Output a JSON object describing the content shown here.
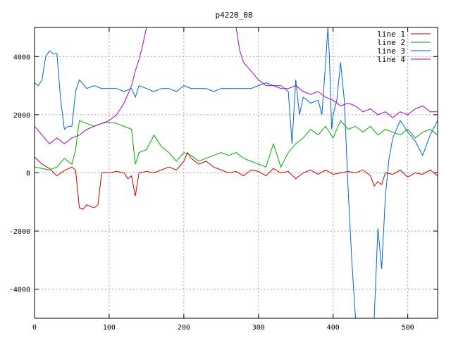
{
  "chart_data": {
    "type": "line",
    "title": "p4220_08",
    "xlabel": "",
    "ylabel": "",
    "xlim": [
      0,
      540
    ],
    "ylim": [
      -5000,
      5000
    ],
    "xticks": [
      0,
      100,
      200,
      300,
      400,
      500
    ],
    "yticks": [
      -4000,
      -2000,
      0,
      2000,
      4000
    ],
    "grid": true,
    "legend": "top-right",
    "series": [
      {
        "name": "line 1",
        "color": "#cc0000",
        "x": [
          0,
          10,
          20,
          30,
          40,
          50,
          55,
          60,
          65,
          70,
          80,
          85,
          90,
          100,
          110,
          120,
          125,
          130,
          135,
          140,
          150,
          160,
          170,
          180,
          190,
          200,
          205,
          210,
          220,
          230,
          240,
          250,
          260,
          270,
          280,
          290,
          300,
          310,
          320,
          330,
          340,
          350,
          360,
          370,
          380,
          390,
          400,
          410,
          420,
          430,
          440,
          450,
          455,
          460,
          465,
          470,
          480,
          490,
          500,
          510,
          520,
          530,
          540
        ],
        "y": [
          550,
          300,
          150,
          -100,
          80,
          200,
          100,
          -1200,
          -1250,
          -1100,
          -1200,
          -1100,
          0,
          0,
          50,
          0,
          -200,
          -100,
          -800,
          0,
          50,
          0,
          100,
          200,
          100,
          400,
          700,
          500,
          300,
          400,
          200,
          100,
          0,
          50,
          -100,
          100,
          50,
          -100,
          150,
          0,
          50,
          -200,
          0,
          100,
          -50,
          100,
          -50,
          0,
          50,
          0,
          100,
          -100,
          -450,
          -300,
          -400,
          0,
          -50,
          100,
          -150,
          0,
          -50,
          100,
          -100
        ]
      },
      {
        "name": "line 2",
        "color": "#00aa00",
        "x": [
          0,
          10,
          20,
          30,
          40,
          50,
          55,
          60,
          65,
          70,
          80,
          90,
          100,
          110,
          120,
          130,
          135,
          140,
          150,
          160,
          170,
          180,
          190,
          200,
          210,
          220,
          230,
          240,
          250,
          260,
          270,
          280,
          290,
          300,
          310,
          320,
          330,
          340,
          350,
          360,
          370,
          380,
          390,
          400,
          410,
          420,
          430,
          440,
          450,
          460,
          470,
          480,
          490,
          500,
          510,
          520,
          530,
          540
        ],
        "y": [
          200,
          150,
          100,
          200,
          500,
          300,
          800,
          1800,
          1750,
          1700,
          1600,
          1700,
          1750,
          1700,
          1600,
          1500,
          300,
          700,
          800,
          1300,
          900,
          700,
          400,
          700,
          600,
          400,
          500,
          600,
          700,
          600,
          700,
          500,
          400,
          300,
          200,
          1000,
          200,
          700,
          1000,
          1200,
          1500,
          1300,
          1600,
          1200,
          1800,
          1500,
          1600,
          1400,
          1600,
          1300,
          1500,
          1400,
          1300,
          1500,
          1200,
          1400,
          1500,
          1300
        ]
      },
      {
        "name": "line 3",
        "color": "#0066cc",
        "x": [
          0,
          5,
          10,
          15,
          20,
          25,
          30,
          35,
          40,
          45,
          50,
          55,
          60,
          70,
          80,
          90,
          100,
          110,
          120,
          130,
          135,
          140,
          150,
          160,
          170,
          180,
          190,
          200,
          210,
          220,
          230,
          240,
          250,
          260,
          270,
          280,
          290,
          300,
          310,
          320,
          330,
          340,
          345,
          350,
          355,
          360,
          370,
          380,
          385,
          390,
          393,
          395,
          398,
          400,
          405,
          410,
          415,
          420,
          425,
          430,
          440,
          450,
          455,
          460,
          465,
          470,
          475,
          480,
          485,
          490,
          495,
          500,
          510,
          520,
          530,
          540
        ],
        "y": [
          3100,
          3000,
          3200,
          4000,
          4200,
          4100,
          4100,
          2500,
          1500,
          1600,
          1600,
          2800,
          3200,
          2900,
          3000,
          2900,
          2900,
          2900,
          2800,
          2900,
          2600,
          3000,
          2900,
          2800,
          2900,
          2900,
          2800,
          3000,
          2900,
          2900,
          2900,
          2800,
          2900,
          2900,
          2900,
          2900,
          2900,
          3000,
          3100,
          3000,
          3000,
          2800,
          1000,
          3200,
          2000,
          2600,
          2400,
          2500,
          2000,
          3800,
          5000,
          4000,
          1500,
          2000,
          2500,
          3800,
          2500,
          -500,
          -3000,
          -5000,
          -5000,
          -5000,
          -5000,
          -1900,
          -3300,
          -800,
          500,
          1200,
          1500,
          1800,
          1600,
          1400,
          1100,
          600,
          1300,
          1800
        ]
      },
      {
        "name": "line 4",
        "color": "#aa00cc",
        "x": [
          0,
          10,
          20,
          30,
          40,
          50,
          60,
          70,
          80,
          90,
          100,
          110,
          120,
          130,
          135,
          140,
          145,
          150,
          155,
          160,
          165,
          250,
          260,
          270,
          275,
          280,
          290,
          300,
          310,
          320,
          330,
          340,
          350,
          360,
          370,
          380,
          390,
          400,
          410,
          420,
          430,
          440,
          450,
          460,
          470,
          480,
          490,
          500,
          510,
          520,
          530,
          540
        ],
        "y": [
          1600,
          1300,
          1000,
          1200,
          1000,
          1200,
          1300,
          1500,
          1600,
          1700,
          1800,
          2000,
          2400,
          3000,
          3500,
          3900,
          4400,
          5000,
          5000,
          5000,
          5000,
          5000,
          5000,
          5000,
          4200,
          3800,
          3500,
          3200,
          3000,
          3000,
          2900,
          2900,
          3000,
          2800,
          2700,
          2800,
          2600,
          2500,
          2300,
          2400,
          2300,
          2100,
          2200,
          2000,
          2100,
          1900,
          2100,
          2000,
          2200,
          2300,
          2100,
          2100
        ]
      }
    ]
  }
}
